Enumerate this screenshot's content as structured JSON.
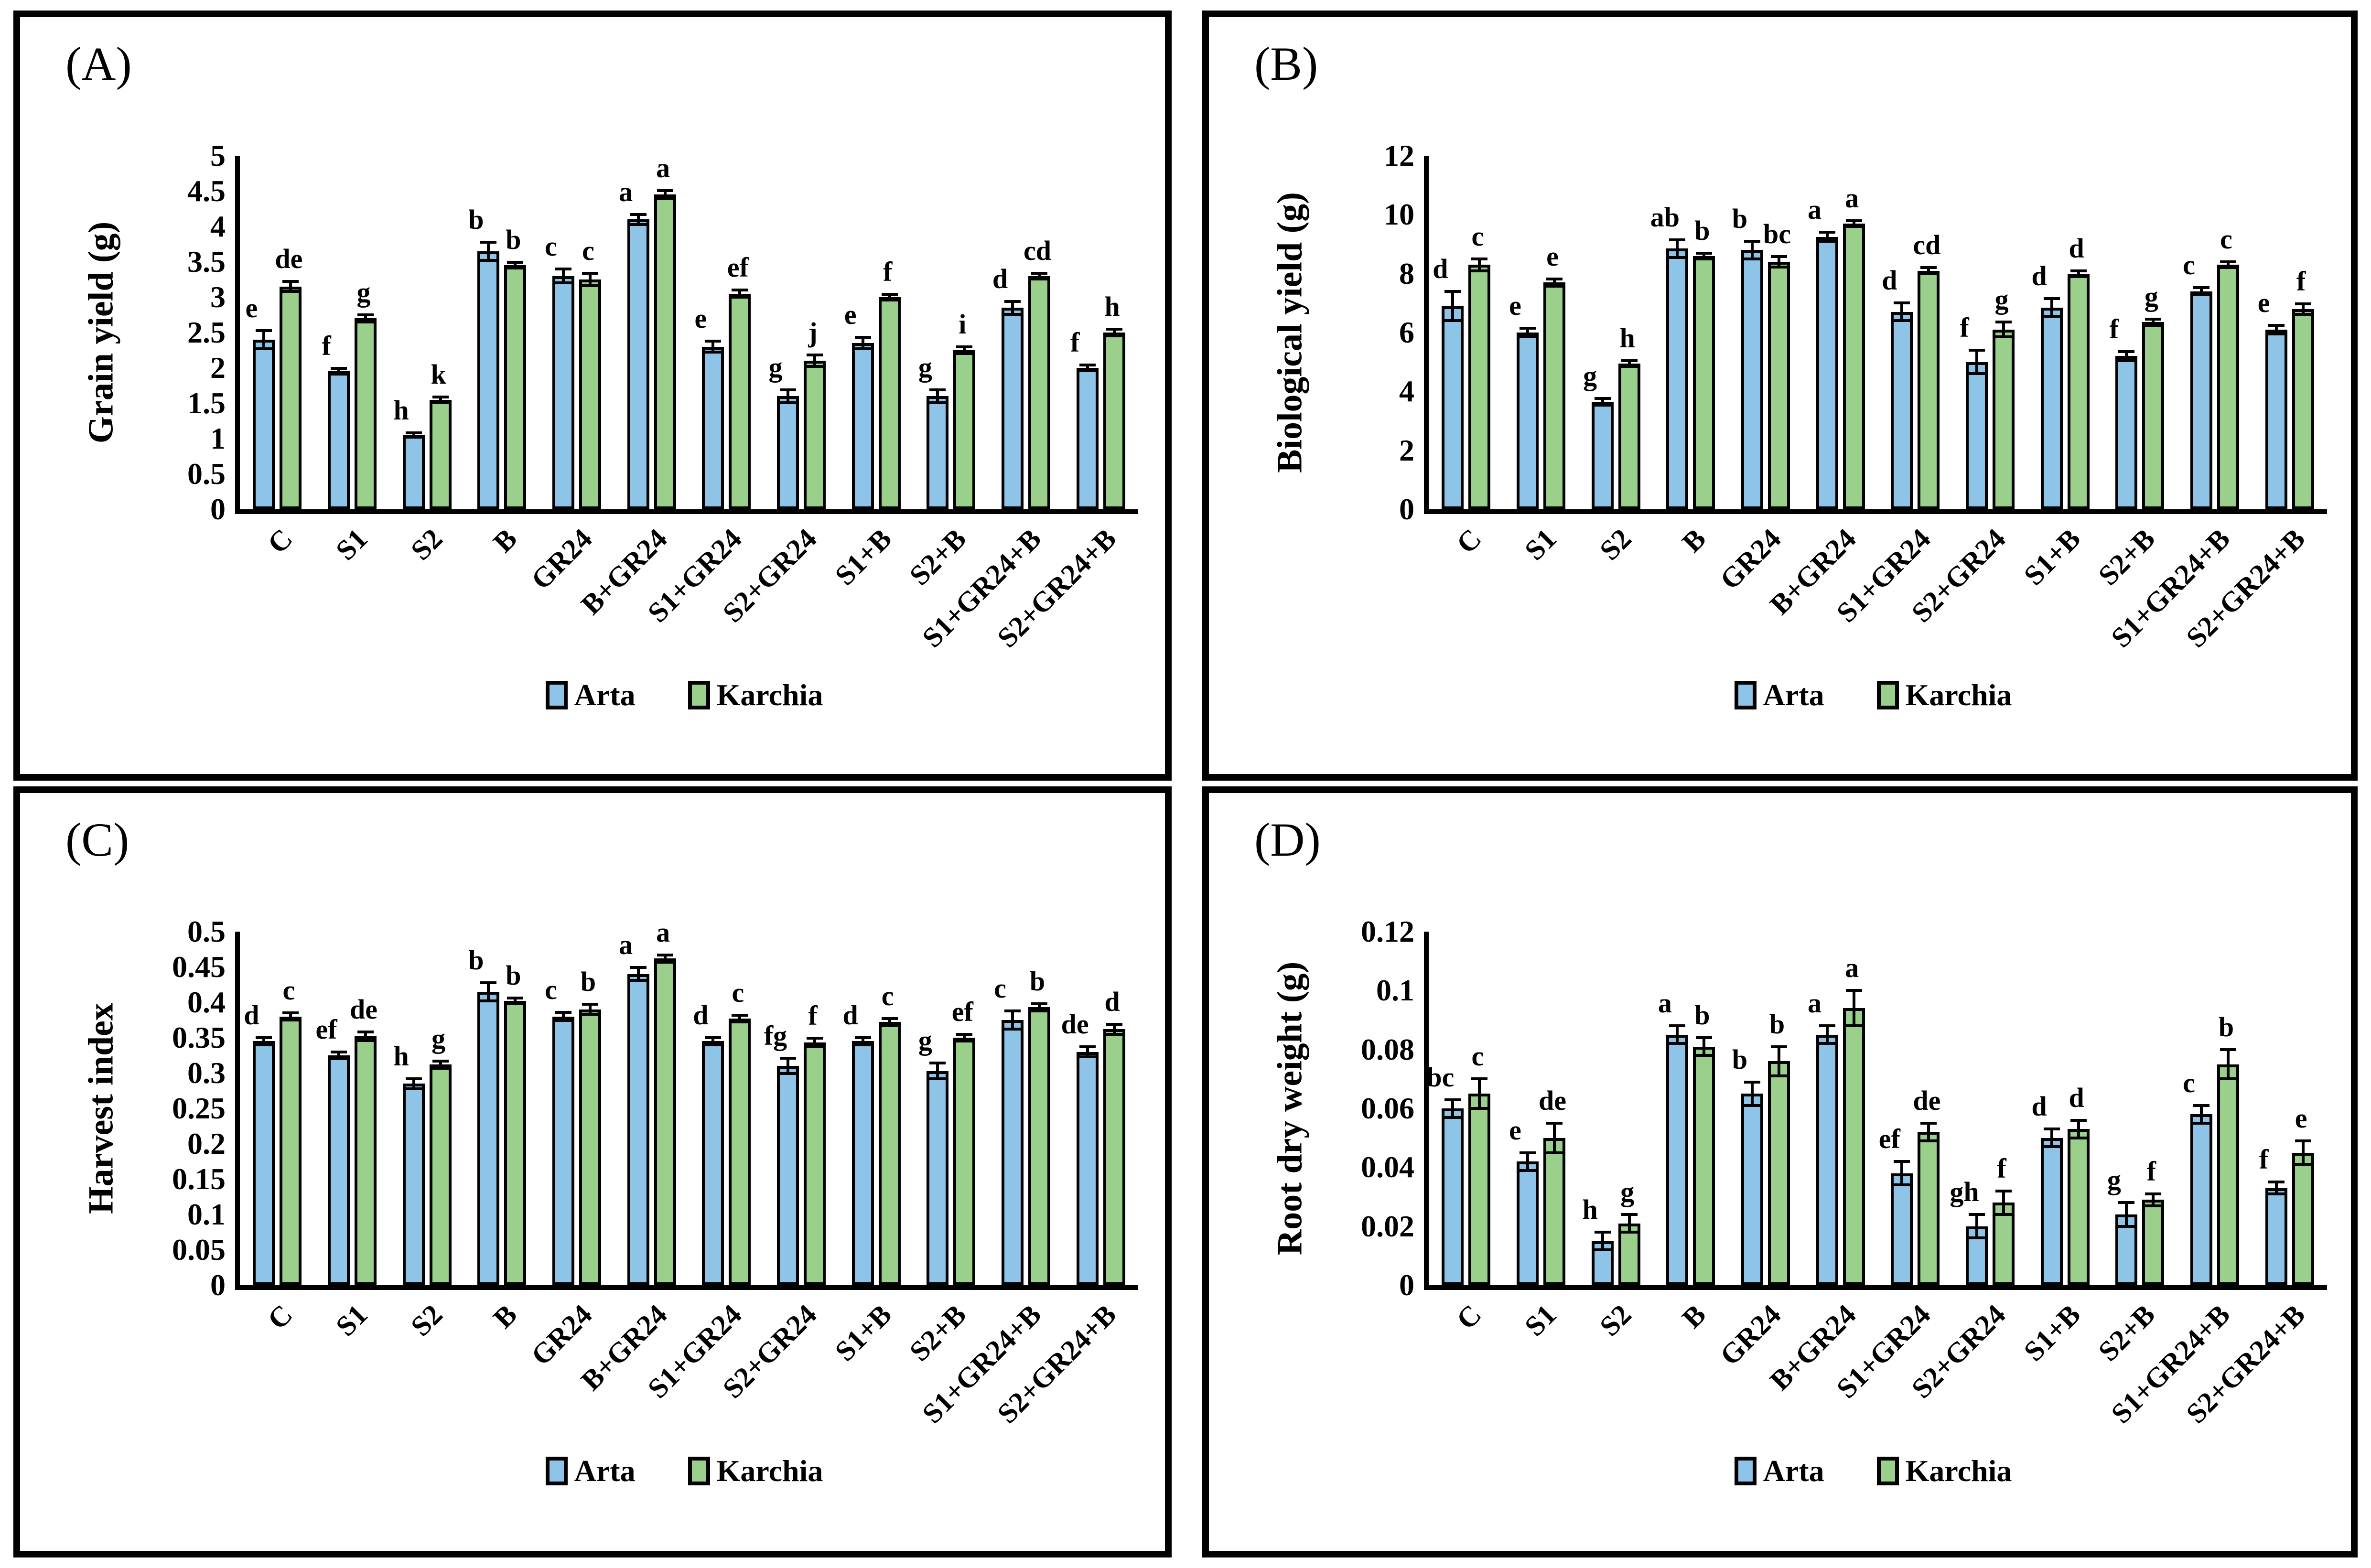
{
  "figure_colors": {
    "arta_blue": "#8EC4E7",
    "karchia_green": "#9AD08C",
    "axis_black": "#000000"
  },
  "chart_data": [
    {
      "type": "bar",
      "panel_label": "(A)",
      "title": "",
      "xlabel": "",
      "ylabel": "Grain yield (g)",
      "ylim": [
        0,
        5
      ],
      "yticks": [
        "0",
        "0.5",
        "1",
        "1.5",
        "2",
        "2.5",
        "3",
        "3.5",
        "4",
        "4.5",
        "5"
      ],
      "grid": false,
      "legend_position": "bottom",
      "categories": [
        "C",
        "S1",
        "S2",
        "B",
        "GR24",
        "B+GR24",
        "S1+GR24",
        "S2+GR24",
        "S1+B",
        "S2+B",
        "S1+GR24+B",
        "S2+GR24+B"
      ],
      "series": [
        {
          "name": "Arta",
          "color": "#8EC4E7",
          "values": [
            2.4,
            1.95,
            1.05,
            3.65,
            3.3,
            4.1,
            2.3,
            1.6,
            2.35,
            1.6,
            2.85,
            2.0
          ],
          "errors": [
            0.13,
            0.04,
            0.03,
            0.13,
            0.1,
            0.07,
            0.08,
            0.09,
            0.08,
            0.09,
            0.09,
            0.04
          ],
          "letters": [
            "e",
            "f",
            "h",
            "b",
            "c",
            "a",
            "e",
            "g",
            "e",
            "g",
            "d",
            "f"
          ]
        },
        {
          "name": "Karchia",
          "color": "#9AD08C",
          "values": [
            3.15,
            2.7,
            1.55,
            3.45,
            3.25,
            4.45,
            3.05,
            2.1,
            3.0,
            2.25,
            3.3,
            2.5
          ],
          "errors": [
            0.07,
            0.05,
            0.04,
            0.04,
            0.09,
            0.06,
            0.05,
            0.08,
            0.04,
            0.05,
            0.04,
            0.05
          ],
          "letters": [
            "de",
            "g",
            "k",
            "b",
            "c",
            "a",
            "ef",
            "j",
            "f",
            "i",
            "cd",
            "h"
          ]
        }
      ]
    },
    {
      "type": "bar",
      "panel_label": "(B)",
      "title": "",
      "xlabel": "",
      "ylabel": "Biological yield (g)",
      "ylim": [
        0,
        12
      ],
      "yticks": [
        "0",
        "2",
        "4",
        "6",
        "8",
        "10",
        "12"
      ],
      "grid": false,
      "legend_position": "bottom",
      "categories": [
        "C",
        "S1",
        "S2",
        "B",
        "GR24",
        "B+GR24",
        "S1+GR24",
        "S2+GR24",
        "S1+B",
        "S2+B",
        "S1+GR24+B",
        "S2+GR24+B"
      ],
      "series": [
        {
          "name": "Arta",
          "color": "#8EC4E7",
          "values": [
            6.9,
            6.0,
            3.65,
            8.85,
            8.8,
            9.25,
            6.7,
            5.0,
            6.85,
            5.2,
            7.4,
            6.1
          ],
          "errors": [
            0.5,
            0.15,
            0.12,
            0.3,
            0.3,
            0.15,
            0.3,
            0.4,
            0.3,
            0.15,
            0.12,
            0.15
          ],
          "letters": [
            "d",
            "e",
            "g",
            "ab",
            "b",
            "a",
            "d",
            "f",
            "d",
            "f",
            "c",
            "e"
          ]
        },
        {
          "name": "Karchia",
          "color": "#9AD08C",
          "values": [
            8.3,
            7.7,
            4.95,
            8.6,
            8.4,
            9.7,
            8.1,
            6.1,
            8.0,
            6.35,
            8.3,
            6.8
          ],
          "errors": [
            0.2,
            0.12,
            0.1,
            0.1,
            0.18,
            0.1,
            0.1,
            0.25,
            0.1,
            0.1,
            0.1,
            0.18
          ],
          "letters": [
            "c",
            "e",
            "h",
            "b",
            "bc",
            "a",
            "cd",
            "g",
            "d",
            "g",
            "c",
            "f"
          ]
        }
      ]
    },
    {
      "type": "bar",
      "panel_label": "(C)",
      "title": "",
      "xlabel": "",
      "ylabel": "Harvest index",
      "ylim": [
        0,
        0.5
      ],
      "yticks": [
        "0",
        "0.05",
        "0.1",
        "0.15",
        "0.2",
        "0.25",
        "0.3",
        "0.35",
        "0.4",
        "0.45",
        "0.5"
      ],
      "grid": false,
      "legend_position": "bottom",
      "categories": [
        "C",
        "S1",
        "S2",
        "B",
        "GR24",
        "B+GR24",
        "S1+GR24",
        "S2+GR24",
        "S1+B",
        "S2+B",
        "S1+GR24+B",
        "S2+GR24+B"
      ],
      "series": [
        {
          "name": "Arta",
          "color": "#8EC4E7",
          "values": [
            0.345,
            0.325,
            0.285,
            0.415,
            0.38,
            0.44,
            0.345,
            0.31,
            0.345,
            0.303,
            0.375,
            0.33
          ],
          "errors": [
            0.005,
            0.005,
            0.007,
            0.013,
            0.006,
            0.009,
            0.005,
            0.011,
            0.005,
            0.011,
            0.013,
            0.007
          ],
          "letters": [
            "d",
            "ef",
            "h",
            "b",
            "c",
            "a",
            "d",
            "fg",
            "d",
            "g",
            "c",
            "de"
          ]
        },
        {
          "name": "Karchia",
          "color": "#9AD08C",
          "values": [
            0.38,
            0.352,
            0.312,
            0.402,
            0.39,
            0.462,
            0.377,
            0.343,
            0.372,
            0.35,
            0.393,
            0.362
          ],
          "errors": [
            0.005,
            0.006,
            0.005,
            0.004,
            0.007,
            0.005,
            0.005,
            0.006,
            0.005,
            0.005,
            0.005,
            0.007
          ],
          "letters": [
            "c",
            "de",
            "g",
            "b",
            "b",
            "a",
            "c",
            "f",
            "c",
            "ef",
            "b",
            "d"
          ]
        }
      ]
    },
    {
      "type": "bar",
      "panel_label": "(D)",
      "title": "",
      "xlabel": "",
      "ylabel": "Root dry weight (g)",
      "ylim": [
        0,
        0.12
      ],
      "yticks": [
        "0",
        "0.02",
        "0.04",
        "0.06",
        "0.08",
        "0.1",
        "0.12"
      ],
      "grid": false,
      "legend_position": "bottom",
      "categories": [
        "C",
        "S1",
        "S2",
        "B",
        "GR24",
        "B+GR24",
        "S1+GR24",
        "S2+GR24",
        "S1+B",
        "S2+B",
        "S1+GR24+B",
        "S2+GR24+B"
      ],
      "series": [
        {
          "name": "Arta",
          "color": "#8EC4E7",
          "values": [
            0.06,
            0.042,
            0.015,
            0.085,
            0.065,
            0.085,
            0.038,
            0.02,
            0.05,
            0.024,
            0.058,
            0.033
          ],
          "errors": [
            0.003,
            0.003,
            0.003,
            0.003,
            0.004,
            0.003,
            0.004,
            0.004,
            0.003,
            0.004,
            0.003,
            0.002
          ],
          "letters": [
            "bc",
            "e",
            "h",
            "a",
            "b",
            "a",
            "ef",
            "gh",
            "d",
            "g",
            "c",
            "f"
          ]
        },
        {
          "name": "Karchia",
          "color": "#9AD08C",
          "values": [
            0.065,
            0.05,
            0.021,
            0.081,
            0.076,
            0.094,
            0.052,
            0.028,
            0.053,
            0.029,
            0.075,
            0.045
          ],
          "errors": [
            0.005,
            0.005,
            0.003,
            0.003,
            0.005,
            0.006,
            0.003,
            0.004,
            0.003,
            0.002,
            0.005,
            0.004
          ],
          "letters": [
            "c",
            "de",
            "g",
            "b",
            "b",
            "a",
            "de",
            "f",
            "d",
            "f",
            "b",
            "e"
          ]
        }
      ]
    }
  ]
}
